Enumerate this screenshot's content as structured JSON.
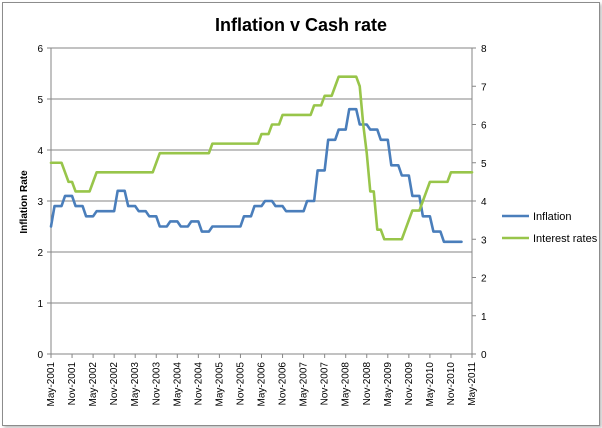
{
  "chart_data": {
    "type": "line",
    "title": "Inflation v Cash rate",
    "ylabel": "Inflation Rate",
    "y2label": "",
    "xlabel": "",
    "ylim": [
      0,
      6
    ],
    "y2lim": [
      0,
      8
    ],
    "yticks": [
      0,
      1,
      2,
      3,
      4,
      5,
      6
    ],
    "y2ticks": [
      0,
      1,
      2,
      3,
      4,
      5,
      6,
      7,
      8
    ],
    "gridlines": true,
    "legend_position": "right",
    "x_tick_labels": [
      "May-2001",
      "Nov-2001",
      "May-2002",
      "Nov-2002",
      "May-2003",
      "Nov-2003",
      "May-2004",
      "Nov-2004",
      "May-2005",
      "Nov-2005",
      "May-2006",
      "Nov-2006",
      "May-2007",
      "Nov-2007",
      "May-2008",
      "Nov-2008",
      "May-2009",
      "Nov-2009",
      "May-2010",
      "Nov-2010",
      "May-2011"
    ],
    "x_range": [
      "2001-05",
      "2011-05"
    ],
    "series": [
      {
        "name": "Inflation",
        "axis": "left",
        "color": "#4a7ebb",
        "points": [
          [
            "2001-05",
            2.5
          ],
          [
            "2001-06",
            2.9
          ],
          [
            "2001-08",
            2.9
          ],
          [
            "2001-09",
            3.1
          ],
          [
            "2001-11",
            3.1
          ],
          [
            "2001-12",
            2.9
          ],
          [
            "2002-02",
            2.9
          ],
          [
            "2002-03",
            2.7
          ],
          [
            "2002-05",
            2.7
          ],
          [
            "2002-06",
            2.8
          ],
          [
            "2002-11",
            2.8
          ],
          [
            "2002-12",
            3.2
          ],
          [
            "2003-02",
            3.2
          ],
          [
            "2003-03",
            2.9
          ],
          [
            "2003-05",
            2.9
          ],
          [
            "2003-06",
            2.8
          ],
          [
            "2003-08",
            2.8
          ],
          [
            "2003-09",
            2.7
          ],
          [
            "2003-11",
            2.7
          ],
          [
            "2003-12",
            2.5
          ],
          [
            "2004-02",
            2.5
          ],
          [
            "2004-03",
            2.6
          ],
          [
            "2004-05",
            2.6
          ],
          [
            "2004-06",
            2.5
          ],
          [
            "2004-08",
            2.5
          ],
          [
            "2004-09",
            2.6
          ],
          [
            "2004-11",
            2.6
          ],
          [
            "2004-12",
            2.4
          ],
          [
            "2005-02",
            2.4
          ],
          [
            "2005-03",
            2.5
          ],
          [
            "2005-11",
            2.5
          ],
          [
            "2005-12",
            2.7
          ],
          [
            "2006-02",
            2.7
          ],
          [
            "2006-03",
            2.9
          ],
          [
            "2006-05",
            2.9
          ],
          [
            "2006-06",
            3.0
          ],
          [
            "2006-08",
            3.0
          ],
          [
            "2006-09",
            2.9
          ],
          [
            "2006-11",
            2.9
          ],
          [
            "2006-12",
            2.8
          ],
          [
            "2007-05",
            2.8
          ],
          [
            "2007-06",
            3.0
          ],
          [
            "2007-08",
            3.0
          ],
          [
            "2007-09",
            3.6
          ],
          [
            "2007-11",
            3.6
          ],
          [
            "2007-12",
            4.2
          ],
          [
            "2008-02",
            4.2
          ],
          [
            "2008-03",
            4.4
          ],
          [
            "2008-05",
            4.4
          ],
          [
            "2008-06",
            4.8
          ],
          [
            "2008-08",
            4.8
          ],
          [
            "2008-09",
            4.5
          ],
          [
            "2008-11",
            4.5
          ],
          [
            "2008-12",
            4.4
          ],
          [
            "2009-02",
            4.4
          ],
          [
            "2009-03",
            4.2
          ],
          [
            "2009-05",
            4.2
          ],
          [
            "2009-06",
            3.7
          ],
          [
            "2009-08",
            3.7
          ],
          [
            "2009-09",
            3.5
          ],
          [
            "2009-11",
            3.5
          ],
          [
            "2009-12",
            3.1
          ],
          [
            "2010-02",
            3.1
          ],
          [
            "2010-03",
            2.7
          ],
          [
            "2010-05",
            2.7
          ],
          [
            "2010-06",
            2.4
          ],
          [
            "2010-08",
            2.4
          ],
          [
            "2010-09",
            2.2
          ],
          [
            "2011-02",
            2.2
          ]
        ]
      },
      {
        "name": "Interest rates",
        "axis": "right",
        "color": "#98c54a",
        "points": [
          [
            "2001-05",
            5.0
          ],
          [
            "2001-08",
            5.0
          ],
          [
            "2001-09",
            4.75
          ],
          [
            "2001-10",
            4.5
          ],
          [
            "2001-11",
            4.5
          ],
          [
            "2001-12",
            4.25
          ],
          [
            "2002-04",
            4.25
          ],
          [
            "2002-05",
            4.5
          ],
          [
            "2002-06",
            4.75
          ],
          [
            "2003-10",
            4.75
          ],
          [
            "2003-11",
            5.0
          ],
          [
            "2003-12",
            5.25
          ],
          [
            "2005-02",
            5.25
          ],
          [
            "2005-03",
            5.5
          ],
          [
            "2006-04",
            5.5
          ],
          [
            "2006-05",
            5.75
          ],
          [
            "2006-07",
            5.75
          ],
          [
            "2006-08",
            6.0
          ],
          [
            "2006-10",
            6.0
          ],
          [
            "2006-11",
            6.25
          ],
          [
            "2007-07",
            6.25
          ],
          [
            "2007-08",
            6.5
          ],
          [
            "2007-10",
            6.5
          ],
          [
            "2007-11",
            6.75
          ],
          [
            "2008-01",
            6.75
          ],
          [
            "2008-02",
            7.0
          ],
          [
            "2008-03",
            7.25
          ],
          [
            "2008-08",
            7.25
          ],
          [
            "2008-09",
            7.0
          ],
          [
            "2008-10",
            6.0
          ],
          [
            "2008-11",
            5.25
          ],
          [
            "2008-12",
            4.25
          ],
          [
            "2009-01",
            4.25
          ],
          [
            "2009-02",
            3.25
          ],
          [
            "2009-03",
            3.25
          ],
          [
            "2009-04",
            3.0
          ],
          [
            "2009-09",
            3.0
          ],
          [
            "2009-10",
            3.25
          ],
          [
            "2009-11",
            3.5
          ],
          [
            "2009-12",
            3.75
          ],
          [
            "2010-02",
            3.75
          ],
          [
            "2010-03",
            4.0
          ],
          [
            "2010-04",
            4.25
          ],
          [
            "2010-05",
            4.5
          ],
          [
            "2010-10",
            4.5
          ],
          [
            "2010-11",
            4.75
          ],
          [
            "2011-05",
            4.75
          ]
        ]
      }
    ]
  }
}
